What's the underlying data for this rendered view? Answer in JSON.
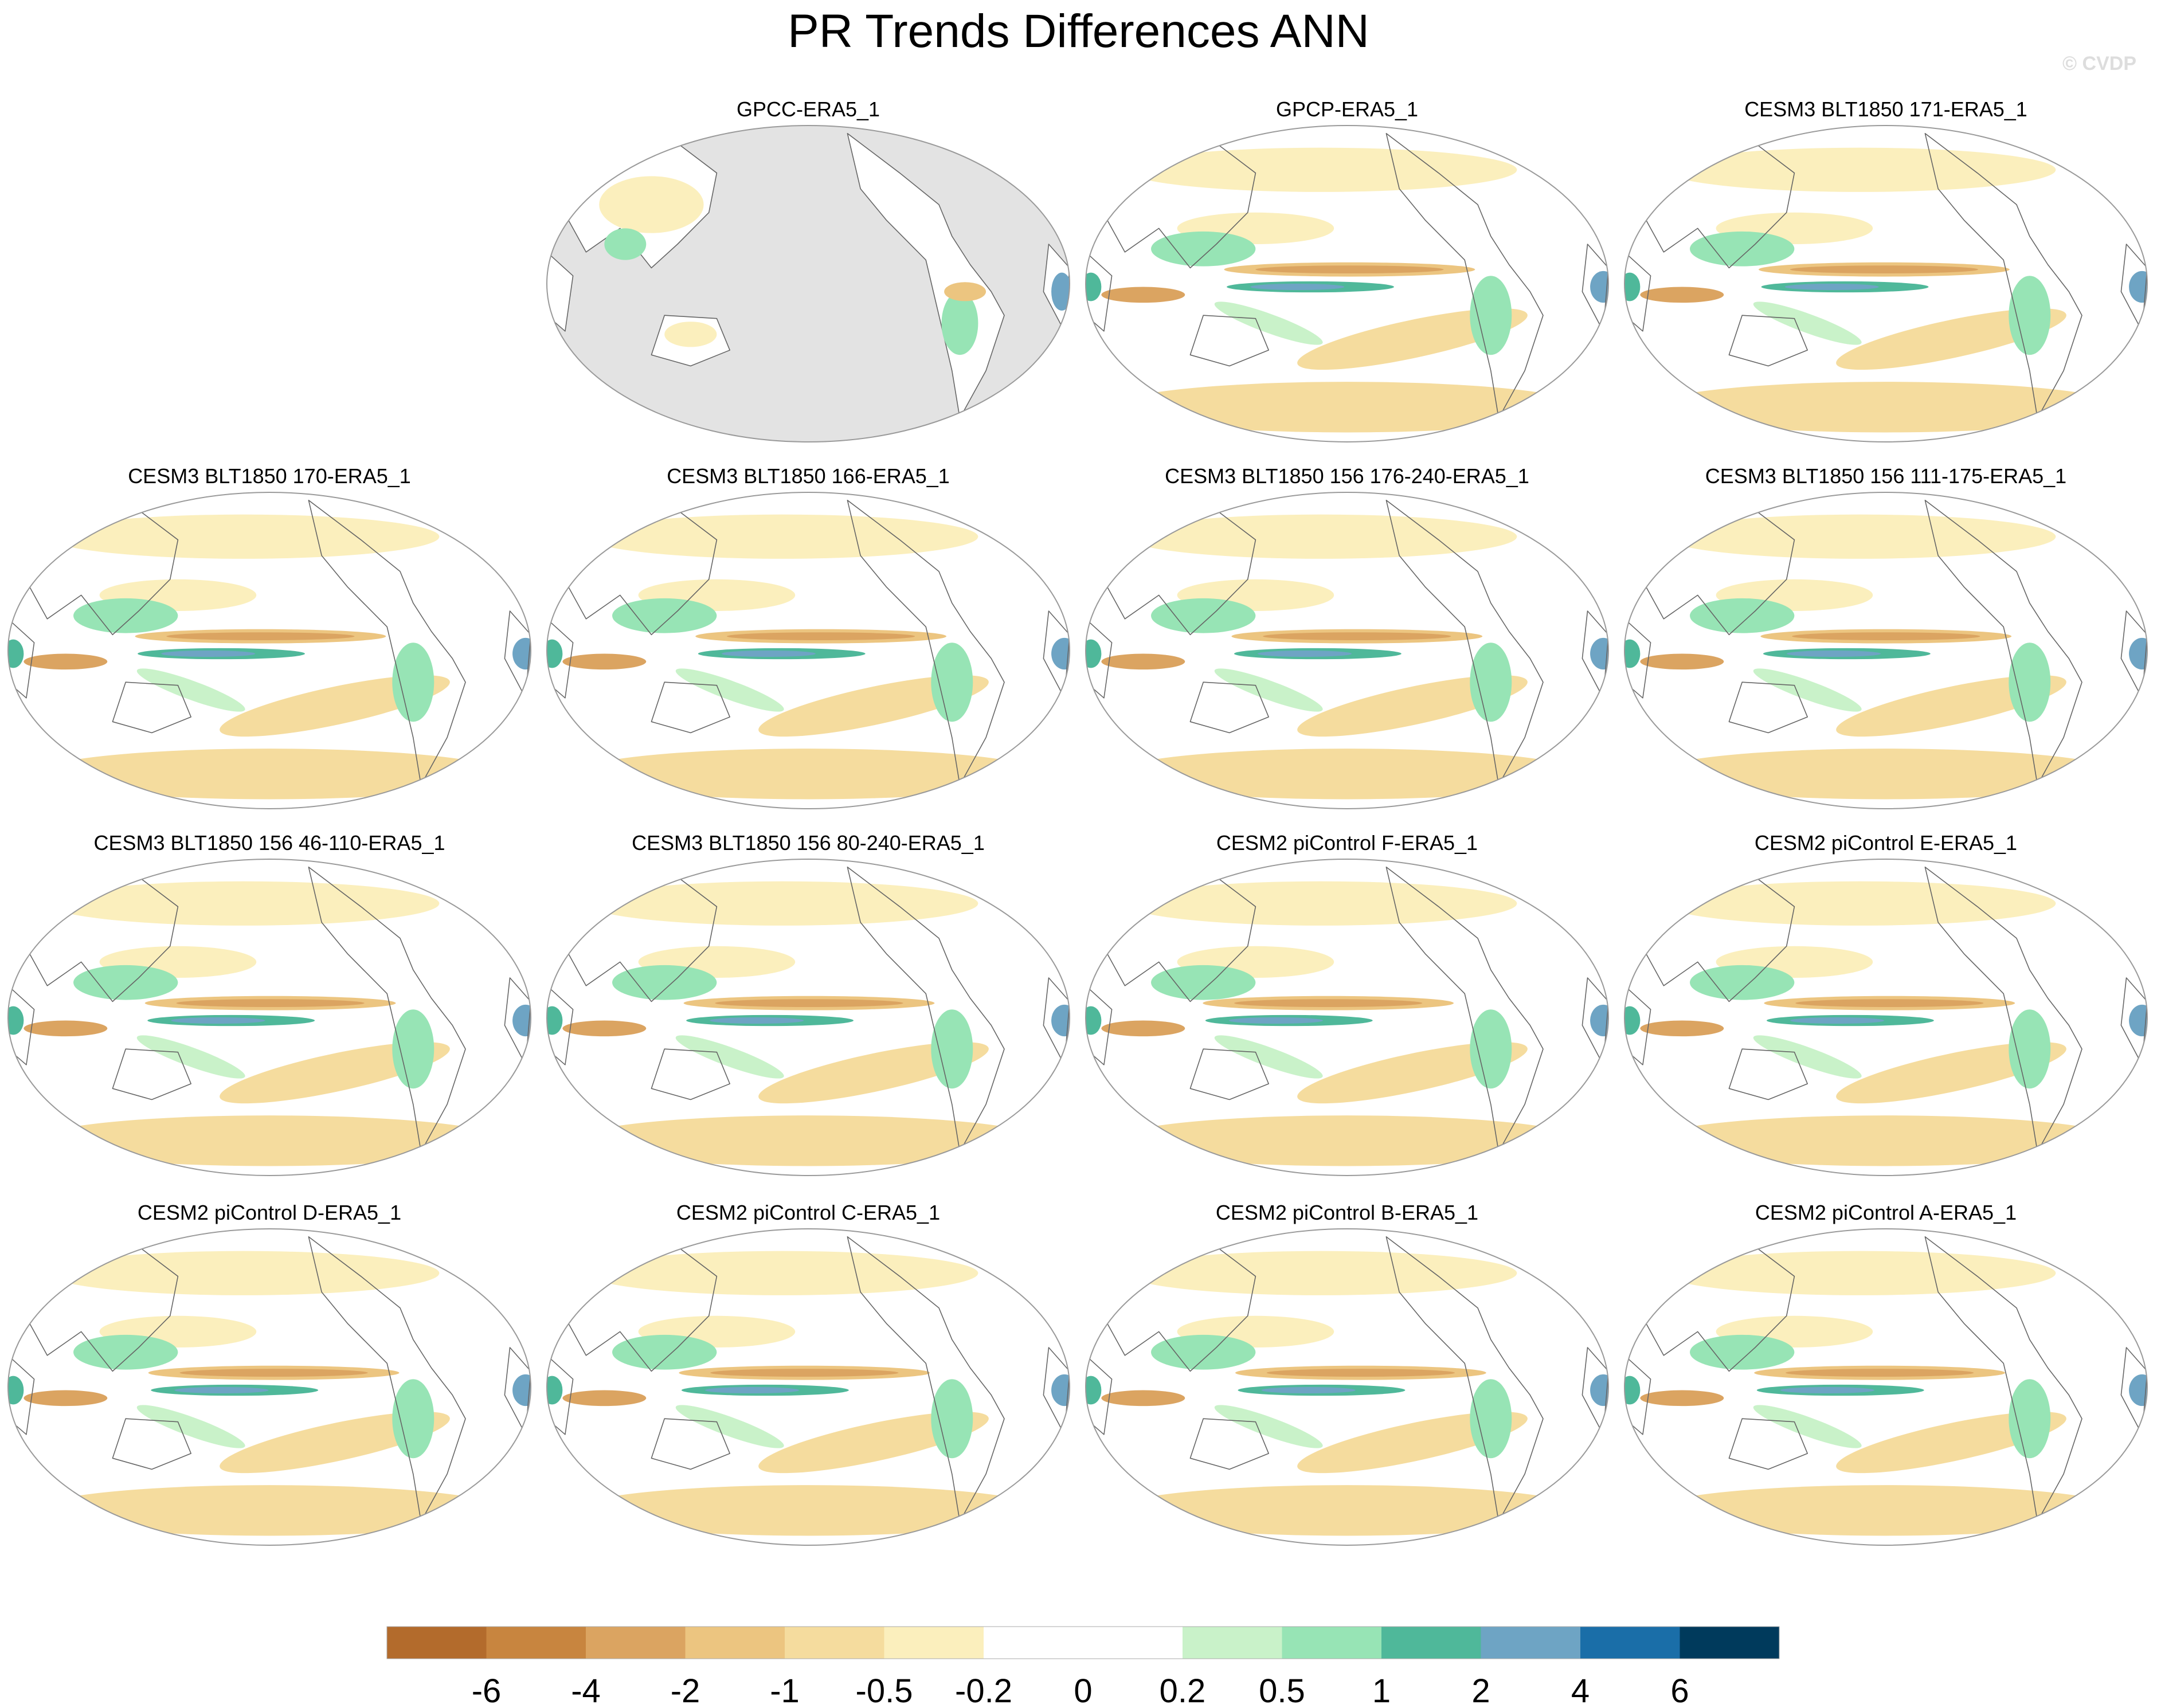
{
  "chart_data": {
    "type": "heatmap",
    "title": "PR Trends Differences ANN",
    "watermark": "© CVDP",
    "panels": [
      {
        "label": "GPCC-ERA5_1",
        "land_only": true
      },
      {
        "label": "GPCP-ERA5_1"
      },
      {
        "label": "CESM3 BLT1850 171-ERA5_1"
      },
      {
        "label": "CESM3 BLT1850 170-ERA5_1"
      },
      {
        "label": "CESM3 BLT1850 166-ERA5_1"
      },
      {
        "label": "CESM3 BLT1850 156 176-240-ERA5_1"
      },
      {
        "label": "CESM3 BLT1850 156 111-175-ERA5_1"
      },
      {
        "label": "CESM3 BLT1850 156 46-110-ERA5_1"
      },
      {
        "label": "CESM3 BLT1850 156 80-240-ERA5_1"
      },
      {
        "label": "CESM2 piControl F-ERA5_1"
      },
      {
        "label": "CESM2 piControl E-ERA5_1"
      },
      {
        "label": "CESM2 piControl D-ERA5_1"
      },
      {
        "label": "CESM2 piControl C-ERA5_1"
      },
      {
        "label": "CESM2 piControl B-ERA5_1"
      },
      {
        "label": "CESM2 piControl A-ERA5_1"
      }
    ],
    "colorbar": {
      "levels": [
        "-6",
        "-4",
        "-2",
        "-1",
        "-0.5",
        "-0.2",
        "0",
        "0.2",
        "0.5",
        "1",
        "2",
        "4",
        "6"
      ],
      "colors": [
        "#b36b2c",
        "#c8853f",
        "#dba461",
        "#ecc580",
        "#f5dc9e",
        "#fbefbd",
        "#ffffff",
        "#ffffff",
        "#c9f2c9",
        "#97e4b5",
        "#4fb89a",
        "#6ea4c4",
        "#1a6ea8",
        "#003a5c"
      ]
    },
    "map_colors": {
      "land_mask": "#e3e3e3",
      "coast": "#666666",
      "border": "#9a9a9a"
    }
  }
}
